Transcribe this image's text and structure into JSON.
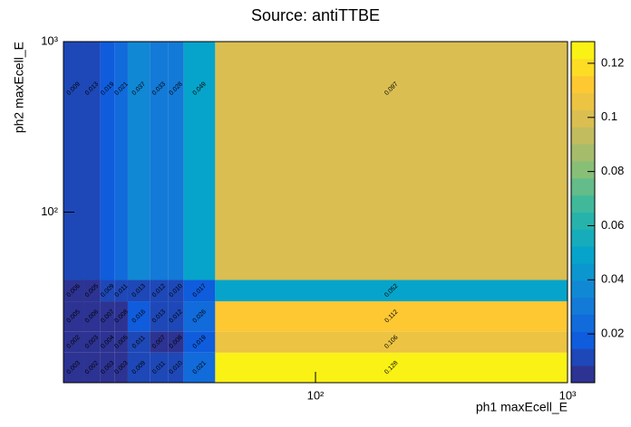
{
  "chart_data": {
    "type": "heatmap",
    "title": "Source: antiTTBE",
    "x_label": "ph1 maxEcell_E",
    "y_label": "ph2 maxEcell_E",
    "x_edges": [
      10,
      12,
      14,
      16,
      18,
      22,
      26,
      30,
      40,
      1000
    ],
    "y_edges": [
      10,
      15,
      20,
      30,
      40,
      1000
    ],
    "z": [
      [
        0.003,
        0.002,
        0.003,
        0.003,
        0.009,
        0.011,
        0.01,
        0.021,
        0.128
      ],
      [
        0.002,
        0.003,
        0.004,
        0.005,
        0.011,
        0.007,
        0.008,
        0.019,
        0.106
      ],
      [
        0.005,
        0.006,
        0.007,
        0.008,
        0.016,
        0.013,
        0.012,
        0.026,
        0.112
      ],
      [
        0.006,
        0.005,
        0.009,
        0.011,
        0.013,
        0.012,
        0.01,
        0.017,
        0.052
      ],
      [
        0.009,
        0.013,
        0.019,
        0.021,
        0.037,
        0.033,
        0.028,
        0.049,
        0.097
      ]
    ],
    "value_labels": [
      [
        "0.003",
        "0.002",
        "0.003",
        "0.003",
        "0.009",
        "0.011",
        "0.010",
        "0.021",
        "0.128"
      ],
      [
        "0.002",
        "0.003",
        "0.004",
        "0.005",
        "0.011",
        "0.007",
        "0.008",
        "0.019",
        "0.106"
      ],
      [
        "0.005",
        "0.006",
        "0.007",
        "0.008",
        "0.016",
        "0.013",
        "0.012",
        "0.026",
        "0.112"
      ],
      [
        "0.006",
        "0.005",
        "0.009",
        "0.011",
        "0.013",
        "0.012",
        "0.010",
        "0.017",
        "0.052"
      ],
      [
        "0.009",
        "0.013",
        "0.019",
        "0.021",
        "0.037",
        "0.033",
        "0.028",
        "0.049",
        "0.097"
      ]
    ],
    "xlim": [
      10,
      1000
    ],
    "ylim": [
      10,
      1000
    ],
    "xlog": true,
    "ylog": true,
    "xticks": [
      {
        "value": 100,
        "label": "10²"
      },
      {
        "value": 1000,
        "label": "10³"
      }
    ],
    "yticks": [
      {
        "value": 100,
        "label": "10²"
      },
      {
        "value": 1000,
        "label": "10³"
      }
    ],
    "zlim": [
      0.002,
      0.128
    ],
    "zticks": [
      0.02,
      0.04,
      0.06,
      0.08,
      0.1,
      0.12
    ],
    "contour_levels": 20,
    "colorscale": [
      "#35297f",
      "#0f5cdd",
      "#1481d6",
      "#06a4ca",
      "#2eb7a4",
      "#87bf77",
      "#d1bb59",
      "#fec832",
      "#f9fb0e"
    ]
  }
}
